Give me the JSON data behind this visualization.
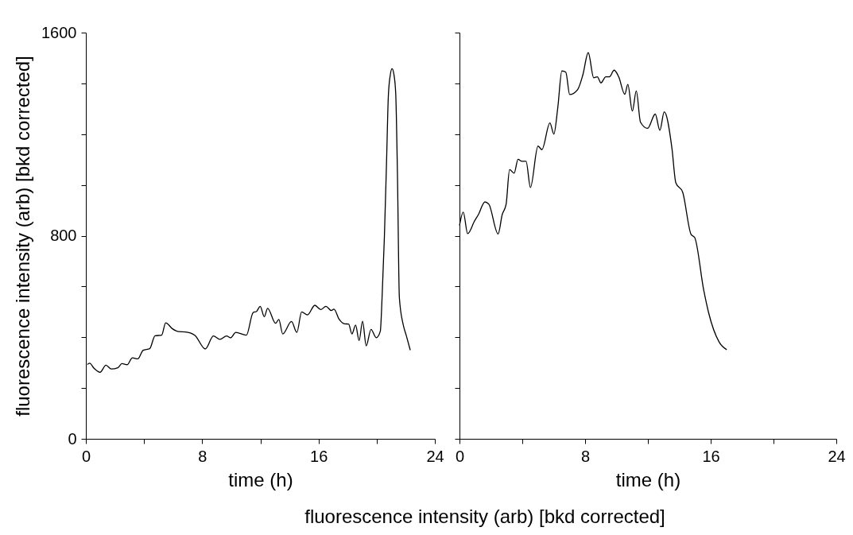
{
  "chart_data": [
    {
      "type": "line",
      "ylabel": "fluorescence intensity (arb) [bkd corrected]",
      "xlabel": "time (h)",
      "xlim": [
        0,
        24
      ],
      "ylim": [
        0,
        1600
      ],
      "xticks": [
        0,
        {
          "value": 4,
          "label": null
        },
        8,
        {
          "value": 12,
          "label": null
        },
        16,
        {
          "value": 20,
          "label": null
        },
        24
      ],
      "yticks": [
        0,
        {
          "value": 200,
          "label": null
        },
        {
          "value": 400,
          "label": null
        },
        {
          "value": 600,
          "label": null
        },
        800,
        {
          "value": 1000,
          "label": null
        },
        {
          "value": 1200,
          "label": null
        },
        {
          "value": 1400,
          "label": null
        },
        1600
      ],
      "grid": false,
      "marker": "none",
      "line_style": "solid",
      "annotations": [
        "fluorescence intensity (arb) [bkd corrected]"
      ],
      "series": [
        {
          "color": "#000000",
          "x": [
            0.1,
            0.26,
            0.56,
            0.98,
            1.38,
            1.75,
            2.2,
            2.48,
            2.84,
            3.2,
            3.57,
            3.94,
            4.39,
            4.76,
            5.21,
            5.49,
            5.94,
            6.4,
            6.85,
            7.49,
            8.22,
            8.77,
            9.22,
            9.68,
            9.95,
            10.31,
            11.04,
            11.5,
            11.74,
            11.99,
            12.27,
            12.5,
            13.05,
            13.27,
            13.54,
            14.14,
            14.51,
            14.84,
            15.24,
            15.75,
            16.15,
            16.51,
            16.88,
            17.06,
            17.42,
            17.79,
            18.07,
            18.3,
            18.55,
            18.79,
            19.03,
            19.28,
            19.61,
            19.97,
            20.25,
            20.37,
            20.53,
            20.68,
            20.8,
            20.93,
            21.06,
            21.18,
            21.31,
            21.43,
            21.56,
            21.83,
            22.04,
            22.31
          ],
          "values": [
            293,
            298,
            278,
            262,
            290,
            275,
            280,
            296,
            292,
            319,
            315,
            349,
            355,
            406,
            408,
            457,
            434,
            422,
            421,
            408,
            354,
            405,
            392,
            405,
            398,
            419,
            408,
            497,
            502,
            522,
            481,
            514,
            455,
            470,
            413,
            462,
            419,
            500,
            488,
            526,
            509,
            522,
            505,
            511,
            471,
            453,
            452,
            413,
            448,
            387,
            463,
            366,
            431,
            398,
            424,
            555,
            795,
            1095,
            1347,
            1431,
            1458,
            1437,
            1359,
            1036,
            556,
            448,
            406,
            349
          ]
        }
      ]
    },
    {
      "type": "line",
      "xlabel": "time (h)",
      "xlim": [
        0,
        24
      ],
      "ylim": [
        0,
        1600
      ],
      "xticks": [
        0,
        {
          "value": 4,
          "label": null
        },
        8,
        {
          "value": 12,
          "label": null
        },
        16,
        {
          "value": 20,
          "label": null
        },
        24
      ],
      "yticks": [
        {
          "value": 0,
          "label": null
        },
        {
          "value": 200,
          "label": null
        },
        {
          "value": 400,
          "label": null
        },
        {
          "value": 600,
          "label": null
        },
        {
          "value": 800,
          "label": null
        },
        {
          "value": 1000,
          "label": null
        },
        {
          "value": 1200,
          "label": null
        },
        {
          "value": 1400,
          "label": null
        },
        {
          "value": 1600,
          "label": null
        }
      ],
      "tick_labels": "x",
      "grid": false,
      "marker": "none",
      "line_style": "solid",
      "series": [
        {
          "color": "#000000",
          "x": [
            0,
            0.24,
            0.52,
            0.95,
            1.2,
            1.62,
            1.87,
            2.46,
            2.72,
            2.97,
            3.19,
            3.48,
            3.73,
            3.98,
            4.24,
            4.52,
            5.0,
            5.25,
            5.76,
            6.01,
            6.26,
            6.52,
            6.77,
            7.02,
            7.53,
            7.86,
            8.2,
            8.55,
            8.78,
            9.01,
            9.32,
            9.55,
            9.85,
            10.14,
            10.53,
            10.72,
            11.01,
            11.26,
            11.53,
            11.98,
            12.47,
            12.76,
            13.04,
            13.53,
            13.78,
            14.21,
            14.75,
            14.98,
            15.56,
            15.85,
            16.54,
            17.02
          ],
          "values": [
            840,
            893,
            808,
            857,
            883,
            933,
            924,
            807,
            883,
            924,
            1060,
            1046,
            1101,
            1093,
            1093,
            990,
            1153,
            1139,
            1244,
            1200,
            1304,
            1449,
            1444,
            1356,
            1376,
            1434,
            1521,
            1422,
            1426,
            1402,
            1426,
            1426,
            1452,
            1426,
            1357,
            1396,
            1291,
            1370,
            1247,
            1223,
            1279,
            1215,
            1288,
            1145,
            1008,
            972,
            805,
            793,
            584,
            501,
            381,
            351
          ]
        }
      ]
    }
  ]
}
